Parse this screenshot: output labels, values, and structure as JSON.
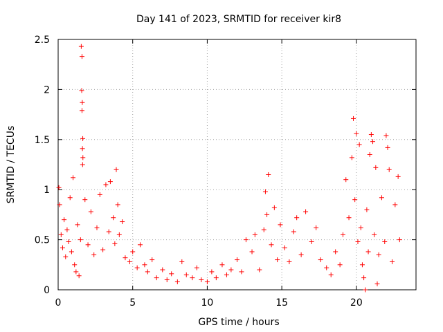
{
  "chart_data": {
    "type": "scatter",
    "title": "Day 141 of 2023, SRMTID for receiver kir8",
    "xlabel": "GPS time / hours",
    "ylabel": "SRMTID / TECUs",
    "xlim": [
      0,
      24
    ],
    "ylim": [
      0,
      2.5
    ],
    "xticks": [
      "0",
      "5",
      "10",
      "15",
      "20"
    ],
    "yticks": [
      "0",
      "0.5",
      "1",
      "1.5",
      "2",
      "2.5"
    ],
    "grid": true,
    "marker": "+",
    "color": "#ff0000",
    "series": [
      {
        "name": "kir8 SRMTID",
        "points": [
          [
            0.05,
            1.02
          ],
          [
            0.1,
            0.85
          ],
          [
            0.2,
            0.55
          ],
          [
            0.3,
            0.42
          ],
          [
            0.4,
            0.7
          ],
          [
            0.5,
            0.33
          ],
          [
            0.6,
            0.6
          ],
          [
            0.7,
            0.48
          ],
          [
            0.8,
            0.92
          ],
          [
            0.9,
            0.38
          ],
          [
            1.0,
            1.12
          ],
          [
            1.1,
            0.25
          ],
          [
            1.2,
            0.18
          ],
          [
            1.3,
            0.65
          ],
          [
            1.4,
            0.14
          ],
          [
            1.5,
            0.5
          ],
          [
            1.55,
            2.43
          ],
          [
            1.6,
            2.33
          ],
          [
            1.58,
            1.99
          ],
          [
            1.62,
            1.87
          ],
          [
            1.6,
            1.79
          ],
          [
            1.65,
            1.51
          ],
          [
            1.63,
            1.41
          ],
          [
            1.66,
            1.32
          ],
          [
            1.64,
            1.25
          ],
          [
            1.8,
            0.9
          ],
          [
            2.0,
            0.45
          ],
          [
            2.2,
            0.78
          ],
          [
            2.4,
            0.35
          ],
          [
            2.6,
            0.62
          ],
          [
            2.8,
            0.95
          ],
          [
            3.0,
            0.4
          ],
          [
            3.2,
            1.05
          ],
          [
            3.4,
            0.58
          ],
          [
            3.5,
            1.08
          ],
          [
            3.7,
            0.72
          ],
          [
            3.8,
            0.46
          ],
          [
            3.9,
            1.2
          ],
          [
            4.0,
            0.85
          ],
          [
            4.1,
            0.55
          ],
          [
            4.3,
            0.68
          ],
          [
            4.5,
            0.32
          ],
          [
            4.8,
            0.28
          ],
          [
            5.0,
            0.38
          ],
          [
            5.3,
            0.22
          ],
          [
            5.5,
            0.45
          ],
          [
            5.8,
            0.25
          ],
          [
            6.0,
            0.18
          ],
          [
            6.3,
            0.3
          ],
          [
            6.6,
            0.12
          ],
          [
            7.0,
            0.2
          ],
          [
            7.3,
            0.1
          ],
          [
            7.6,
            0.16
          ],
          [
            8.0,
            0.08
          ],
          [
            8.3,
            0.28
          ],
          [
            8.6,
            0.15
          ],
          [
            9.0,
            0.12
          ],
          [
            9.3,
            0.22
          ],
          [
            9.6,
            0.1
          ],
          [
            10.0,
            0.08
          ],
          [
            10.3,
            0.18
          ],
          [
            10.6,
            0.12
          ],
          [
            11.0,
            0.25
          ],
          [
            11.3,
            0.15
          ],
          [
            11.6,
            0.2
          ],
          [
            12.0,
            0.3
          ],
          [
            12.3,
            0.18
          ],
          [
            12.6,
            0.5
          ],
          [
            13.0,
            0.38
          ],
          [
            13.2,
            0.55
          ],
          [
            13.5,
            0.2
          ],
          [
            13.8,
            0.6
          ],
          [
            13.9,
            0.98
          ],
          [
            14.0,
            0.75
          ],
          [
            14.1,
            1.15
          ],
          [
            14.3,
            0.45
          ],
          [
            14.5,
            0.82
          ],
          [
            14.7,
            0.3
          ],
          [
            14.9,
            0.65
          ],
          [
            15.2,
            0.42
          ],
          [
            15.5,
            0.28
          ],
          [
            15.8,
            0.58
          ],
          [
            16.0,
            0.72
          ],
          [
            16.3,
            0.35
          ],
          [
            16.6,
            0.78
          ],
          [
            17.0,
            0.48
          ],
          [
            17.3,
            0.62
          ],
          [
            17.6,
            0.3
          ],
          [
            18.0,
            0.22
          ],
          [
            18.3,
            0.15
          ],
          [
            18.6,
            0.38
          ],
          [
            18.9,
            0.25
          ],
          [
            19.1,
            0.55
          ],
          [
            19.3,
            1.1
          ],
          [
            19.5,
            0.72
          ],
          [
            19.7,
            1.32
          ],
          [
            19.8,
            1.71
          ],
          [
            19.9,
            0.9
          ],
          [
            20.0,
            1.56
          ],
          [
            20.1,
            0.48
          ],
          [
            20.2,
            1.45
          ],
          [
            20.3,
            0.62
          ],
          [
            20.4,
            0.25
          ],
          [
            20.5,
            0.12
          ],
          [
            20.6,
            0.0
          ],
          [
            20.7,
            0.8
          ],
          [
            20.8,
            0.38
          ],
          [
            20.9,
            1.35
          ],
          [
            21.0,
            1.55
          ],
          [
            21.1,
            1.48
          ],
          [
            21.2,
            0.55
          ],
          [
            21.3,
            1.22
          ],
          [
            21.4,
            0.06
          ],
          [
            21.5,
            0.35
          ],
          [
            21.7,
            0.92
          ],
          [
            21.9,
            0.48
          ],
          [
            22.0,
            1.54
          ],
          [
            22.1,
            1.42
          ],
          [
            22.2,
            1.2
          ],
          [
            22.4,
            0.28
          ],
          [
            22.6,
            0.85
          ],
          [
            22.8,
            1.13
          ],
          [
            22.9,
            0.5
          ]
        ]
      }
    ]
  }
}
